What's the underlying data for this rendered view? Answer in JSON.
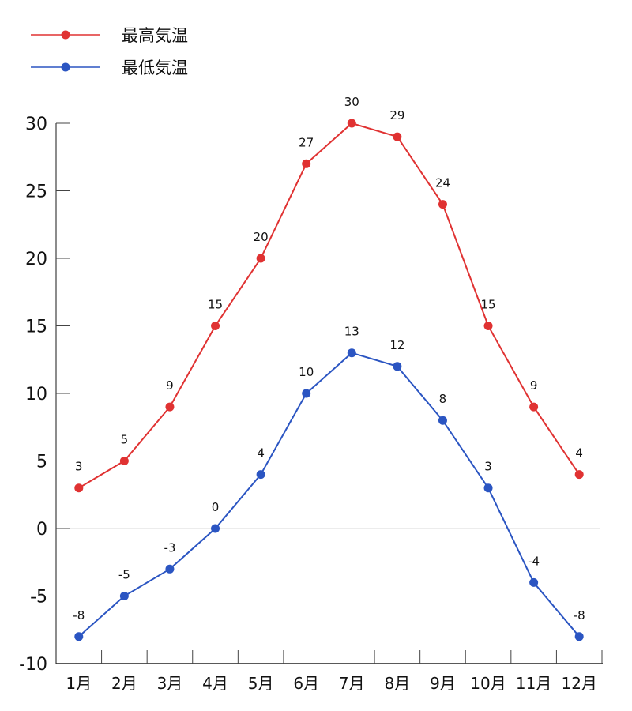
{
  "chart_data": {
    "type": "line",
    "categories": [
      "1月",
      "2月",
      "3月",
      "4月",
      "5月",
      "6月",
      "7月",
      "8月",
      "9月",
      "10月",
      "11月",
      "12月"
    ],
    "series": [
      {
        "name": "最高気温",
        "color": "#e03232",
        "values": [
          3,
          5,
          9,
          15,
          20,
          27,
          30,
          29,
          24,
          15,
          9,
          4
        ]
      },
      {
        "name": "最低気温",
        "color": "#2b55c2",
        "values": [
          -8,
          -5,
          -3,
          0,
          4,
          10,
          13,
          12,
          8,
          3,
          -4,
          -8
        ]
      }
    ],
    "ylim": [
      -10,
      30
    ],
    "yticks": [
      -10,
      -5,
      0,
      5,
      10,
      15,
      20,
      25,
      30
    ],
    "legend": "top-left",
    "grid": "zero line only",
    "data_labels": true
  }
}
